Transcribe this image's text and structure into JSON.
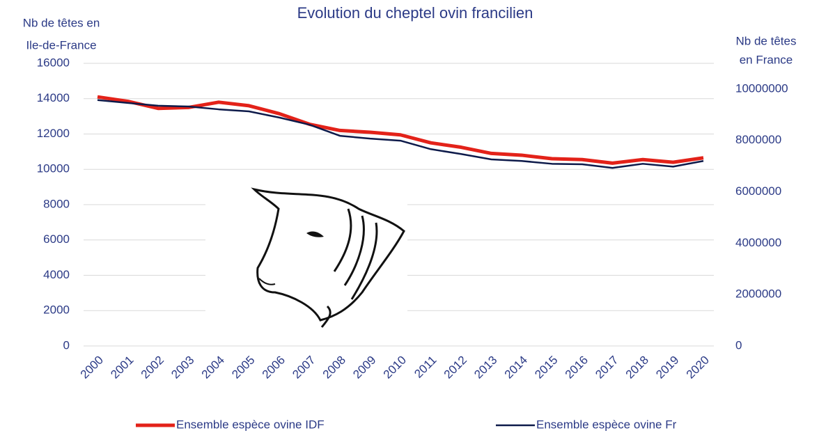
{
  "chart_data": {
    "type": "line",
    "title": "Evolution du cheptel ovin francilien",
    "ylabel_lines": [
      "Nb de têtes en",
      "Ile-de-France"
    ],
    "y2label_lines": [
      "Nb de têtes",
      "en France"
    ],
    "categories": [
      "2000",
      "2001",
      "2002",
      "2003",
      "2004",
      "2005",
      "2006",
      "2007",
      "2008",
      "2009",
      "2010",
      "2011",
      "2012",
      "2013",
      "2014",
      "2015",
      "2016",
      "2017",
      "2018",
      "2019",
      "2020"
    ],
    "series": [
      {
        "name": "Ensemble espèce ovine IDF",
        "color": "#e32219",
        "axis": "y",
        "values": [
          14100,
          13850,
          13450,
          13500,
          13800,
          13600,
          13150,
          12550,
          12200,
          12100,
          11950,
          11500,
          11250,
          10900,
          10800,
          10600,
          10550,
          10350,
          10550,
          10400,
          10650
        ]
      },
      {
        "name": "Ensemble espèce ovine Fr",
        "color": "#0d1a4a",
        "axis": "y2",
        "values": [
          9570000,
          9460000,
          9350000,
          9320000,
          9210000,
          9130000,
          8890000,
          8610000,
          8180000,
          8070000,
          7990000,
          7660000,
          7470000,
          7260000,
          7200000,
          7090000,
          7070000,
          6930000,
          7090000,
          6980000,
          7200000
        ]
      }
    ],
    "ylim": [
      0,
      16000
    ],
    "yticks": [
      0,
      2000,
      4000,
      6000,
      8000,
      10000,
      12000,
      14000,
      16000
    ],
    "y2lim": [
      0,
      11000000
    ],
    "y2ticks": [
      0,
      2000000,
      4000000,
      6000000,
      8000000,
      10000000
    ],
    "grid": true,
    "legend": "bottom"
  }
}
